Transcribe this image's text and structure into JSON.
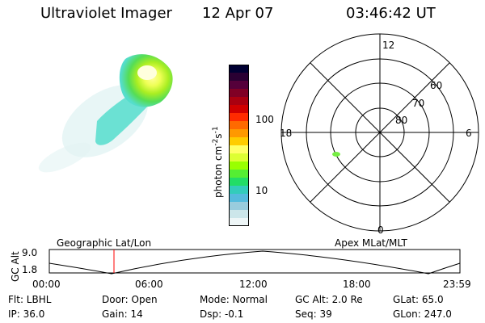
{
  "header": {
    "instrument": "Ultraviolet Imager",
    "date": "12 Apr 07",
    "time": "03:46:42 UT"
  },
  "colorbar": {
    "unit_label": "photon cm",
    "unit_exp1": "-2",
    "unit_mid": "s",
    "unit_exp2": "-1",
    "tick_100": "100",
    "tick_10": "10",
    "colors": [
      "#000033",
      "#2a0033",
      "#55003a",
      "#800025",
      "#aa0010",
      "#d00000",
      "#ff2b00",
      "#ff6a00",
      "#ff9900",
      "#ffcc00",
      "#ffff66",
      "#ddff33",
      "#99ff00",
      "#55ee33",
      "#22dd66",
      "#33ccbb",
      "#55bbdd",
      "#99ccdd",
      "#cce6ea",
      "#eef6f7"
    ]
  },
  "polar": {
    "mlt_12": "12",
    "mlt_18": "18",
    "mlt_6": "6",
    "mlt_0": "0",
    "lat_60": "60",
    "lat_70": "70",
    "lat_80": "80"
  },
  "timeline": {
    "left_title": "Geographic Lat/Lon",
    "right_title": "Apex MLat/MLT",
    "axis_label": "GC Alt",
    "y_top": "9.0",
    "y_bottom": "1.8",
    "ticks": [
      "00:00",
      "06:00",
      "12:00",
      "18:00",
      "23:59"
    ],
    "marker_time_hours": 3.78
  },
  "info": {
    "filter": "Flt: LBHL",
    "door": "Door: Open",
    "mode": "Mode: Normal",
    "gc_alt": "GC Alt: 2.0 Re",
    "glat": "GLat:  65.0",
    "ip": "IP: 36.0",
    "gain": "Gain: 14",
    "dsp": "Dsp:   -0.1",
    "seq": "Seq: 39",
    "glon": "GLon: 247.0"
  }
}
